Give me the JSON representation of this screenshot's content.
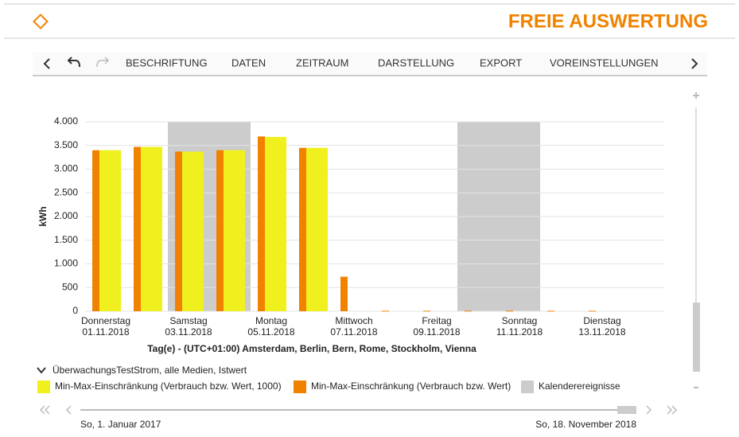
{
  "header": {
    "title": "FREIE AUSWERTUNG"
  },
  "toolbar": {
    "items": [
      "BESCHRIFTUNG",
      "DATEN",
      "ZEITRAUM",
      "DARSTELLUNG",
      "EXPORT",
      "VOREINSTELLUNGEN"
    ]
  },
  "chart_data": {
    "type": "bar",
    "ylabel": "kWh",
    "xlabel": "Tag(e) - (UTC+01:00) Amsterdam, Berlin, Bern, Rome, Stockholm, Vienna",
    "categories": [
      "01.11.2018",
      null,
      "03.11.2018",
      null,
      "05.11.2018",
      null,
      "07.11.2018",
      null,
      "09.11.2018",
      null,
      "11.11.2018",
      null,
      "13.11.2018",
      null
    ],
    "category_weekdays": [
      "Donnerstag",
      null,
      "Samstag",
      null,
      "Montag",
      null,
      "Mittwoch",
      null,
      "Freitag",
      null,
      "Sonntag",
      null,
      "Dienstag",
      null
    ],
    "series": [
      {
        "name": "Min-Max-Einschränkung (Verbrauch bzw. Wert, 1000)",
        "color": "#f0f01e",
        "values": [
          3400,
          3470,
          3370,
          3400,
          3680,
          3450,
          null,
          null,
          null,
          null,
          null,
          null,
          null,
          null
        ]
      },
      {
        "name": "Min-Max-Einschränkung (Verbrauch bzw. Wert)",
        "color": "#f08200",
        "values": [
          3400,
          3470,
          3370,
          3400,
          3690,
          3450,
          730,
          10,
          10,
          10,
          10,
          10,
          10,
          null
        ]
      },
      {
        "name": "Kalenderereignisse",
        "color": "#cccccc",
        "type": "band",
        "values": [
          null,
          null,
          4000,
          4000,
          null,
          null,
          null,
          null,
          null,
          4000,
          4000,
          null,
          null,
          null
        ]
      }
    ],
    "ylim": [
      0,
      4000
    ],
    "yticks": [
      0,
      500,
      {
        "value": 1000,
        "label": "1.000"
      },
      {
        "value": 1500,
        "label": "1.500"
      },
      {
        "value": 2000,
        "label": "2.000"
      },
      {
        "value": 2500,
        "label": "2.500"
      },
      {
        "value": 3000,
        "label": "3.000"
      },
      {
        "value": 3500,
        "label": "3.500"
      },
      {
        "value": 4000,
        "label": "4.000"
      }
    ],
    "grid": true
  },
  "legend_group": "ÜberwachungsTestStrom, alle Medien, Istwert",
  "range": {
    "start": "So, 1. Januar 2017",
    "end": "So, 18. November 2018"
  }
}
